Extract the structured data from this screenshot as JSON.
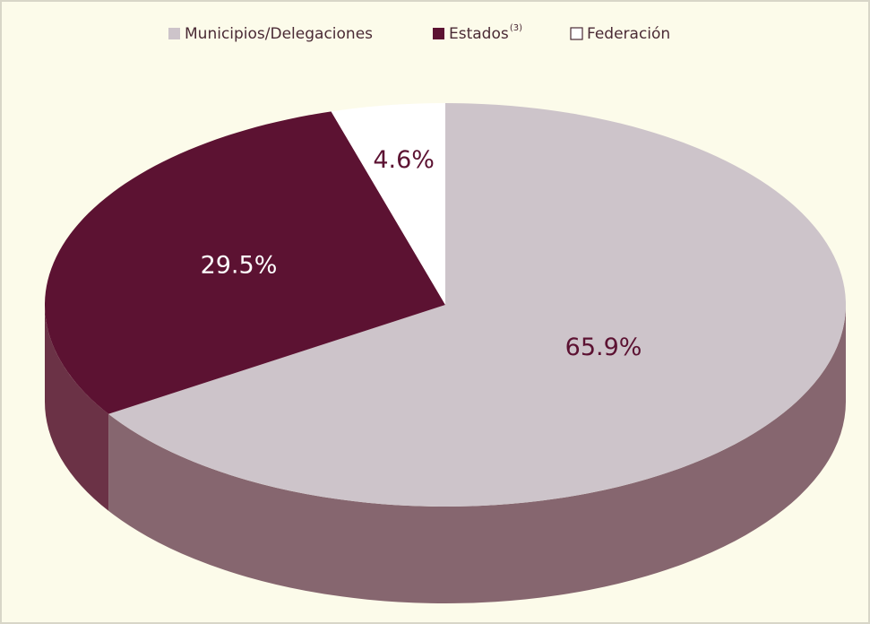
{
  "chart_data": {
    "type": "pie3d",
    "series": [
      {
        "name": "Municipios/Delegaciones",
        "color": "#cdc4ca",
        "side_color": "#86666f",
        "values": [
          65.9
        ],
        "value_labels": [
          "65.9%"
        ]
      },
      {
        "name": "Estados",
        "superscript": "(3)",
        "color": "#5c1232",
        "side_color": "#6b3246",
        "values": [
          29.5
        ],
        "value_labels": [
          "29.5%"
        ]
      },
      {
        "name": "Federación",
        "color": "#ffffff",
        "side_color": "#e8e4e0",
        "values": [
          4.6
        ],
        "value_labels": [
          "4.6%"
        ]
      }
    ]
  }
}
